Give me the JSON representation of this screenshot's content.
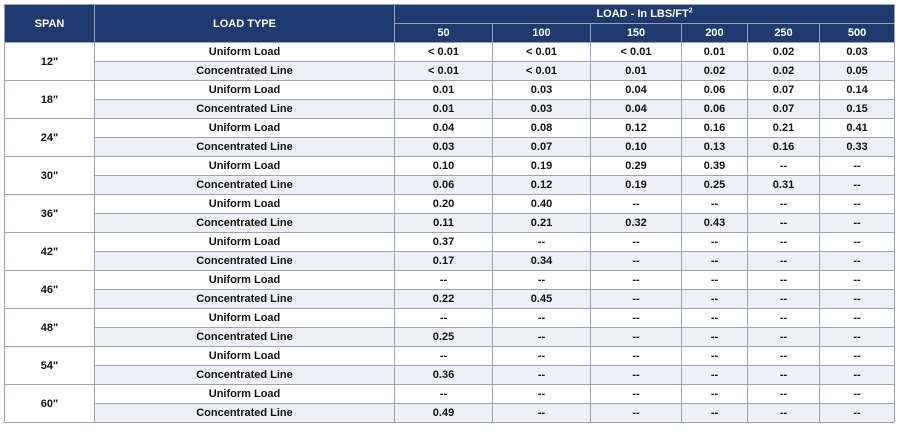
{
  "headers": {
    "span": "SPAN",
    "load_type": "LOAD TYPE",
    "load_prefix": "LOAD - In LBS/FT",
    "load_exp": "2",
    "load_cols": [
      "50",
      "100",
      "150",
      "200",
      "250",
      "500"
    ]
  },
  "groups": [
    {
      "span": "12\"",
      "rows": [
        {
          "type": "Uniform Load",
          "values": [
            "< 0.01",
            "< 0.01",
            "< 0.01",
            "0.01",
            "0.02",
            "0.03"
          ]
        },
        {
          "type": "Concentrated Line",
          "values": [
            "< 0.01",
            "< 0.01",
            "0.01",
            "0.02",
            "0.02",
            "0.05"
          ]
        }
      ]
    },
    {
      "span": "18\"",
      "rows": [
        {
          "type": "Uniform Load",
          "values": [
            "0.01",
            "0.03",
            "0.04",
            "0.06",
            "0.07",
            "0.14"
          ]
        },
        {
          "type": "Concentrated Line",
          "values": [
            "0.01",
            "0.03",
            "0.04",
            "0.06",
            "0.07",
            "0.15"
          ]
        }
      ]
    },
    {
      "span": "24\"",
      "rows": [
        {
          "type": "Uniform Load",
          "values": [
            "0.04",
            "0.08",
            "0.12",
            "0.16",
            "0.21",
            "0.41"
          ]
        },
        {
          "type": "Concentrated Line",
          "values": [
            "0.03",
            "0.07",
            "0.10",
            "0.13",
            "0.16",
            "0.33"
          ]
        }
      ]
    },
    {
      "span": "30\"",
      "rows": [
        {
          "type": "Uniform Load",
          "values": [
            "0.10",
            "0.19",
            "0.29",
            "0.39",
            "--",
            "--"
          ]
        },
        {
          "type": "Concentrated Line",
          "values": [
            "0.06",
            "0.12",
            "0.19",
            "0.25",
            "0.31",
            "--"
          ]
        }
      ]
    },
    {
      "span": "36\"",
      "rows": [
        {
          "type": "Uniform Load",
          "values": [
            "0.20",
            "0.40",
            "--",
            "--",
            "--",
            "--"
          ]
        },
        {
          "type": "Concentrated Line",
          "values": [
            "0.11",
            "0.21",
            "0.32",
            "0.43",
            "--",
            "--"
          ]
        }
      ]
    },
    {
      "span": "42\"",
      "rows": [
        {
          "type": "Uniform Load",
          "values": [
            "0.37",
            "--",
            "--",
            "--",
            "--",
            "--"
          ]
        },
        {
          "type": "Concentrated Line",
          "values": [
            "0.17",
            "0.34",
            "--",
            "--",
            "--",
            "--"
          ]
        }
      ]
    },
    {
      "span": "46\"",
      "rows": [
        {
          "type": "Uniform Load",
          "values": [
            "--",
            "--",
            "--",
            "--",
            "--",
            "--"
          ]
        },
        {
          "type": "Concentrated Line",
          "values": [
            "0.22",
            "0.45",
            "--",
            "--",
            "--",
            "--"
          ]
        }
      ]
    },
    {
      "span": "48\"",
      "rows": [
        {
          "type": "Uniform Load",
          "values": [
            "--",
            "--",
            "--",
            "--",
            "--",
            "--"
          ]
        },
        {
          "type": "Concentrated Line",
          "values": [
            "0.25",
            "--",
            "--",
            "--",
            "--",
            "--"
          ]
        }
      ]
    },
    {
      "span": "54\"",
      "rows": [
        {
          "type": "Uniform Load",
          "values": [
            "--",
            "--",
            "--",
            "--",
            "--",
            "--"
          ]
        },
        {
          "type": "Concentrated Line",
          "values": [
            "0.36",
            "--",
            "--",
            "--",
            "--",
            "--"
          ]
        }
      ]
    },
    {
      "span": "60\"",
      "rows": [
        {
          "type": "Uniform Load",
          "values": [
            "--",
            "--",
            "--",
            "--",
            "--",
            "--"
          ]
        },
        {
          "type": "Concentrated Line",
          "values": [
            "0.49",
            "--",
            "--",
            "--",
            "--",
            "--"
          ]
        }
      ]
    }
  ]
}
